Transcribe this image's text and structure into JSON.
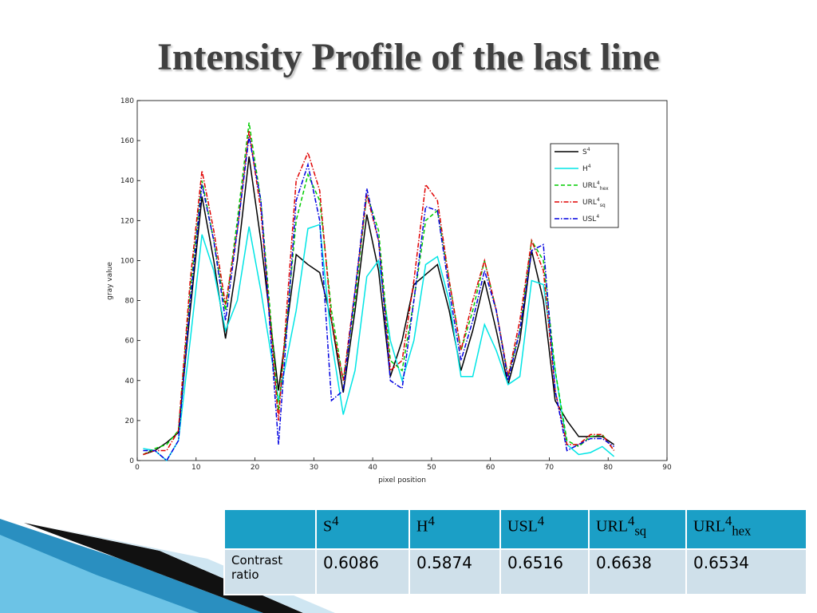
{
  "title": "Intensity Profile of the last line",
  "chart_data": {
    "type": "line",
    "xlabel": "pixel position",
    "ylabel": "gray value",
    "xlim": [
      0,
      90
    ],
    "xticks": [
      0,
      10,
      20,
      30,
      40,
      50,
      60,
      70,
      80,
      90
    ],
    "ylim": [
      0,
      180
    ],
    "yticks": [
      0,
      20,
      40,
      60,
      80,
      100,
      120,
      140,
      160,
      180
    ],
    "legend": "upper right",
    "x": [
      1,
      3,
      5,
      7,
      9,
      11,
      13,
      15,
      17,
      19,
      21,
      24,
      27,
      29,
      31,
      33,
      35,
      37,
      39,
      41,
      43,
      45,
      47,
      49,
      51,
      53,
      55,
      57,
      59,
      61,
      63,
      65,
      67,
      69,
      71,
      73,
      75,
      77,
      79,
      81
    ],
    "series": [
      {
        "name": "S",
        "superscript": "4",
        "color": "#000000",
        "linestyle": "solid",
        "values": [
          3,
          5,
          9,
          14,
          75,
          132,
          100,
          61,
          100,
          152,
          110,
          35,
          103,
          98,
          94,
          70,
          34,
          75,
          123,
          95,
          42,
          60,
          88,
          93,
          98,
          75,
          45,
          65,
          90,
          65,
          38,
          60,
          105,
          80,
          30,
          20,
          12,
          12,
          12,
          8
        ]
      },
      {
        "name": "H",
        "superscript": "4",
        "color": "#00e5e5",
        "linestyle": "solid",
        "values": [
          6,
          5,
          0,
          10,
          60,
          113,
          95,
          65,
          80,
          117,
          85,
          30,
          75,
          116,
          118,
          60,
          23,
          45,
          92,
          100,
          60,
          40,
          60,
          98,
          102,
          80,
          42,
          42,
          68,
          55,
          38,
          42,
          90,
          88,
          45,
          8,
          3,
          4,
          7,
          2
        ]
      },
      {
        "name": "URL",
        "superscript": "4",
        "subscript": "hex",
        "color": "#00cc00",
        "linestyle": "dashed",
        "values": [
          3,
          6,
          8,
          15,
          85,
          140,
          110,
          75,
          120,
          169,
          130,
          25,
          120,
          143,
          130,
          75,
          40,
          80,
          133,
          115,
          50,
          45,
          80,
          120,
          125,
          90,
          55,
          75,
          100,
          75,
          42,
          65,
          110,
          100,
          45,
          10,
          7,
          12,
          13,
          5
        ]
      },
      {
        "name": "URL",
        "superscript": "4",
        "subscript": "sq",
        "color": "#e00000",
        "linestyle": "dash-dot",
        "values": [
          3,
          5,
          5,
          15,
          90,
          145,
          115,
          78,
          115,
          165,
          125,
          20,
          140,
          154,
          135,
          70,
          40,
          85,
          133,
          110,
          45,
          50,
          90,
          138,
          130,
          90,
          55,
          80,
          100,
          75,
          42,
          70,
          110,
          95,
          35,
          8,
          8,
          13,
          13,
          5
        ]
      },
      {
        "name": "USL",
        "superscript": "4",
        "color": "#0000e0",
        "linestyle": "dash-dot",
        "values": [
          5,
          5,
          0,
          10,
          80,
          138,
          110,
          70,
          115,
          162,
          130,
          8,
          130,
          148,
          120,
          30,
          35,
          85,
          136,
          110,
          40,
          36,
          80,
          127,
          125,
          85,
          50,
          70,
          95,
          75,
          40,
          65,
          105,
          108,
          35,
          5,
          8,
          11,
          11,
          7
        ]
      }
    ]
  },
  "table": {
    "header": [
      {
        "name": "S",
        "superscript": "4"
      },
      {
        "name": "H",
        "superscript": "4"
      },
      {
        "name": "USL",
        "superscript": "4"
      },
      {
        "name": "URL",
        "superscript": "4",
        "subscript": "sq"
      },
      {
        "name": "URL",
        "superscript": "4",
        "subscript": "hex"
      }
    ],
    "rows": [
      [
        "Contrast ratio",
        "0.6086",
        "0.5874",
        "0.6516",
        "0.6638",
        "0.6534"
      ]
    ]
  }
}
